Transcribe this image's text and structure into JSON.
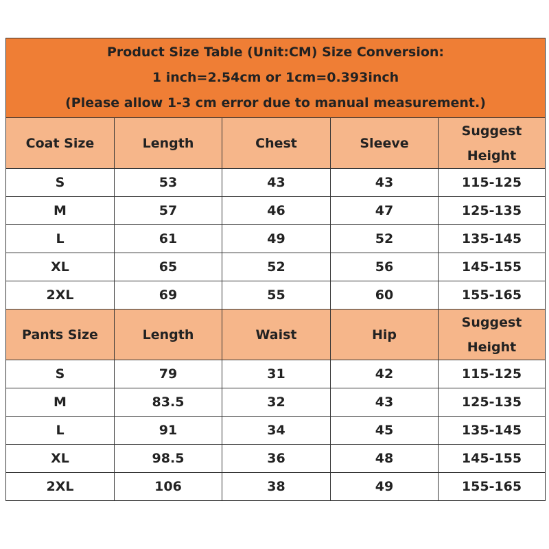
{
  "header": {
    "lines": [
      "Product Size Table (Unit:CM) Size Conversion:",
      "1 inch=2.54cm or 1cm=0.393inch",
      "(Please allow 1-3 cm error due to manual measurement.)"
    ]
  },
  "coat_table": {
    "columns": [
      "Coat Size",
      "Length",
      "Chest",
      "Sleeve",
      "Suggest Height"
    ],
    "rows": [
      [
        "S",
        "53",
        "43",
        "43",
        "115-125"
      ],
      [
        "M",
        "57",
        "46",
        "47",
        "125-135"
      ],
      [
        "L",
        "61",
        "49",
        "52",
        "135-145"
      ],
      [
        "XL",
        "65",
        "52",
        "56",
        "145-155"
      ],
      [
        "2XL",
        "69",
        "55",
        "60",
        "155-165"
      ]
    ]
  },
  "pants_table": {
    "columns": [
      "Pants Size",
      "Length",
      "Waist",
      "Hip",
      "Suggest Height"
    ],
    "rows": [
      [
        "S",
        "79",
        "31",
        "42",
        "115-125"
      ],
      [
        "M",
        "83.5",
        "32",
        "43",
        "125-135"
      ],
      [
        "L",
        "91",
        "34",
        "45",
        "135-145"
      ],
      [
        "XL",
        "98.5",
        "36",
        "48",
        "145-155"
      ],
      [
        "2XL",
        "106",
        "38",
        "49",
        "155-165"
      ]
    ]
  }
}
